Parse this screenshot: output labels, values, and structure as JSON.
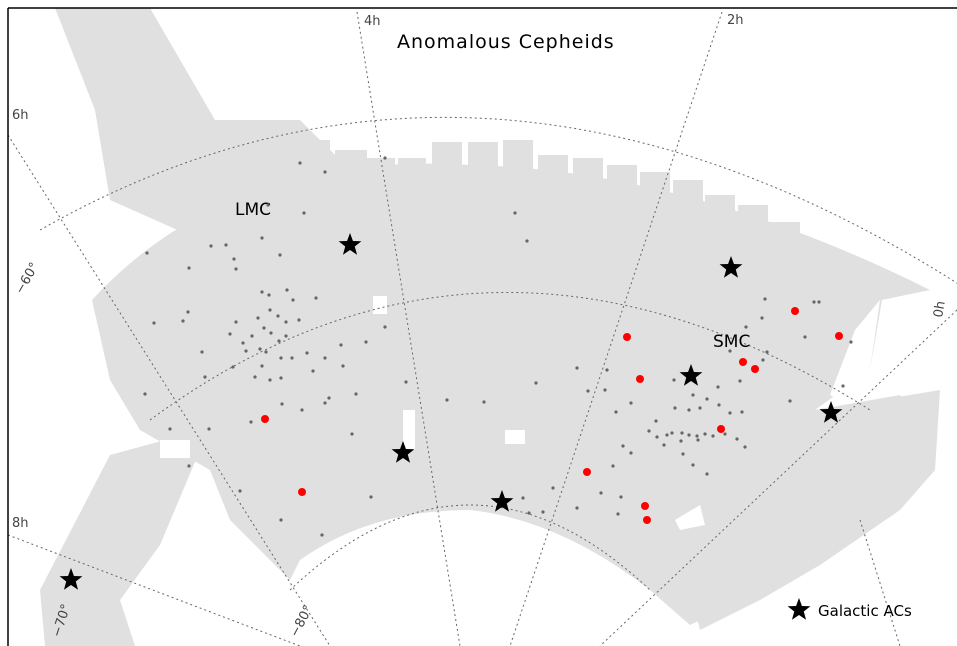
{
  "chart_data": {
    "type": "scatter",
    "title": "Anomalous Cepheids",
    "region_labels": [
      "LMC",
      "SMC"
    ],
    "ra_labels": [
      "0h",
      "2h",
      "4h",
      "6h",
      "8h"
    ],
    "dec_labels": [
      "−60°",
      "−70°",
      "−80°"
    ],
    "legend": {
      "label": "Galactic ACs",
      "position": "bottom-right"
    },
    "colors": {
      "footprint": "#e0e0e0",
      "galactic": "#000000",
      "smc_ac": "#ff0000",
      "lmc_ac": "#666666"
    },
    "series": [
      {
        "name": "Galactic ACs",
        "points": [
          [
            350,
            245
          ],
          [
            731,
            268
          ],
          [
            691,
            376
          ],
          [
            831,
            413
          ],
          [
            403,
            453
          ],
          [
            502,
            502
          ],
          [
            71,
            580
          ]
        ]
      },
      {
        "points": [
          [
            795,
            311
          ],
          [
            839,
            336
          ],
          [
            627,
            337
          ],
          [
            743,
            362
          ],
          [
            755,
            369
          ],
          [
            640,
            379
          ],
          [
            721,
            429
          ],
          [
            265,
            419
          ],
          [
            587,
            472
          ],
          [
            302,
            492
          ],
          [
            645,
            506
          ],
          [
            647,
            520
          ]
        ]
      },
      {
        "points": [
          [
            385,
            158
          ],
          [
            300,
            163
          ],
          [
            325,
            172
          ],
          [
            268,
            205
          ],
          [
            304,
            213
          ],
          [
            262,
            238
          ],
          [
            280,
            255
          ],
          [
            226,
            245
          ],
          [
            234,
            259
          ],
          [
            211,
            246
          ],
          [
            147,
            253
          ],
          [
            236,
            269
          ],
          [
            189,
            268
          ],
          [
            262,
            292
          ],
          [
            269,
            295
          ],
          [
            287,
            290
          ],
          [
            293,
            300
          ],
          [
            270,
            310
          ],
          [
            278,
            316
          ],
          [
            286,
            322
          ],
          [
            258,
            318
          ],
          [
            264,
            328
          ],
          [
            271,
            333
          ],
          [
            252,
            336
          ],
          [
            243,
            343
          ],
          [
            260,
            349
          ],
          [
            246,
            351
          ],
          [
            266,
            352
          ],
          [
            279,
            341
          ],
          [
            286,
            336
          ],
          [
            281,
            358
          ],
          [
            262,
            366
          ],
          [
            255,
            377
          ],
          [
            270,
            380
          ],
          [
            236,
            322
          ],
          [
            230,
            334
          ],
          [
            188,
            312
          ],
          [
            183,
            321
          ],
          [
            154,
            323
          ],
          [
            202,
            352
          ],
          [
            316,
            298
          ],
          [
            299,
            320
          ],
          [
            341,
            345
          ],
          [
            325,
            358
          ],
          [
            343,
            366
          ],
          [
            313,
            371
          ],
          [
            366,
            342
          ],
          [
            385,
            327
          ],
          [
            356,
            394
          ],
          [
            329,
            398
          ],
          [
            325,
            403
          ],
          [
            302,
            410
          ],
          [
            282,
            404
          ],
          [
            251,
            422
          ],
          [
            209,
            429
          ],
          [
            170,
            429
          ],
          [
            145,
            394
          ],
          [
            233,
            367
          ],
          [
            205,
            377
          ],
          [
            281,
            378
          ],
          [
            292,
            358
          ],
          [
            307,
            353
          ],
          [
            352,
            434
          ],
          [
            371,
            497
          ],
          [
            406,
            382
          ],
          [
            447,
            400
          ],
          [
            484,
            402
          ],
          [
            515,
            213
          ],
          [
            527,
            241
          ],
          [
            536,
            383
          ],
          [
            577,
            368
          ],
          [
            588,
            391
          ],
          [
            605,
            390
          ],
          [
            616,
            412
          ],
          [
            631,
            403
          ],
          [
            607,
            370
          ],
          [
            623,
            446
          ],
          [
            613,
            466
          ],
          [
            631,
            453
          ],
          [
            657,
            437
          ],
          [
            667,
            435
          ],
          [
            672,
            433
          ],
          [
            682,
            433
          ],
          [
            689,
            435
          ],
          [
            697,
            436
          ],
          [
            705,
            434
          ],
          [
            713,
            436
          ],
          [
            725,
            434
          ],
          [
            737,
            439
          ],
          [
            745,
            447
          ],
          [
            698,
            440
          ],
          [
            681,
            441
          ],
          [
            664,
            445
          ],
          [
            649,
            431
          ],
          [
            656,
            421
          ],
          [
            675,
            408
          ],
          [
            689,
            410
          ],
          [
            700,
            408
          ],
          [
            719,
            405
          ],
          [
            730,
            413
          ],
          [
            742,
            412
          ],
          [
            693,
            395
          ],
          [
            707,
            399
          ],
          [
            718,
            387
          ],
          [
            740,
            381
          ],
          [
            763,
            360
          ],
          [
            730,
            351
          ],
          [
            767,
            352
          ],
          [
            746,
            327
          ],
          [
            762,
            318
          ],
          [
            765,
            299
          ],
          [
            814,
            302
          ],
          [
            819,
            302
          ],
          [
            805,
            337
          ],
          [
            851,
            342
          ],
          [
            843,
            386
          ],
          [
            790,
            401
          ],
          [
            674,
            380
          ],
          [
            683,
            454
          ],
          [
            693,
            465
          ],
          [
            707,
            474
          ],
          [
            618,
            514
          ],
          [
            601,
            493
          ],
          [
            621,
            497
          ],
          [
            577,
            508
          ],
          [
            553,
            488
          ],
          [
            523,
            498
          ],
          [
            543,
            512
          ],
          [
            529,
            513
          ],
          [
            322,
            535
          ],
          [
            281,
            520
          ],
          [
            240,
            491
          ],
          [
            189,
            466
          ]
        ]
      }
    ]
  }
}
